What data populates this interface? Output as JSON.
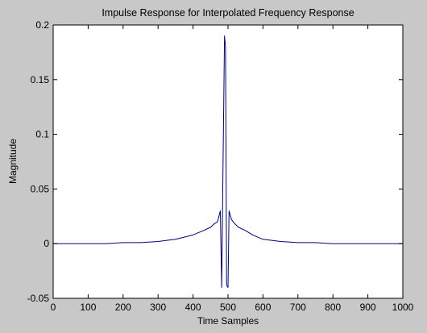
{
  "chart_data": {
    "type": "line",
    "title": "Impulse Response for Interpolated Frequency Response",
    "xlabel": "Time Samples",
    "ylabel": "Magnitude",
    "xlim": [
      0,
      1000
    ],
    "ylim": [
      -0.05,
      0.2
    ],
    "xticks": [
      0,
      100,
      200,
      300,
      400,
      500,
      600,
      700,
      800,
      900,
      1000
    ],
    "xtick_labels": [
      "0",
      "100",
      "200",
      "300",
      "400",
      "500",
      "600",
      "700",
      "800",
      "900",
      "1000"
    ],
    "yticks": [
      -0.05,
      0,
      0.05,
      0.1,
      0.15,
      0.2
    ],
    "ytick_labels": [
      "-0.05",
      "0",
      "0.05",
      "0.1",
      "0.15",
      "0.2"
    ],
    "grid": false,
    "legend": "none",
    "colors": {
      "figure_background": "#c8c8c8",
      "axes_background": "#ffffff",
      "line": "#00007f",
      "axes": "#000000"
    },
    "series": [
      {
        "points": [
          [
            0,
            0
          ],
          [
            50,
            0
          ],
          [
            100,
            0
          ],
          [
            150,
            0
          ],
          [
            200,
            0.001
          ],
          [
            250,
            0.001
          ],
          [
            300,
            0.002
          ],
          [
            350,
            0.004
          ],
          [
            400,
            0.008
          ],
          [
            430,
            0.012
          ],
          [
            450,
            0.015
          ],
          [
            460,
            0.018
          ],
          [
            470,
            0.02
          ],
          [
            478,
            0.03
          ],
          [
            482,
            -0.04
          ],
          [
            485,
            0.05
          ],
          [
            490,
            0.19
          ],
          [
            493,
            0.18
          ],
          [
            496,
            -0.038
          ],
          [
            500,
            -0.04
          ],
          [
            503,
            0.03
          ],
          [
            510,
            0.022
          ],
          [
            520,
            0.018
          ],
          [
            530,
            0.015
          ],
          [
            550,
            0.012
          ],
          [
            570,
            0.008
          ],
          [
            600,
            0.004
          ],
          [
            650,
            0.002
          ],
          [
            700,
            0.001
          ],
          [
            750,
            0.001
          ],
          [
            800,
            0
          ],
          [
            850,
            0
          ],
          [
            900,
            0
          ],
          [
            950,
            0
          ],
          [
            1000,
            0
          ]
        ]
      }
    ]
  }
}
